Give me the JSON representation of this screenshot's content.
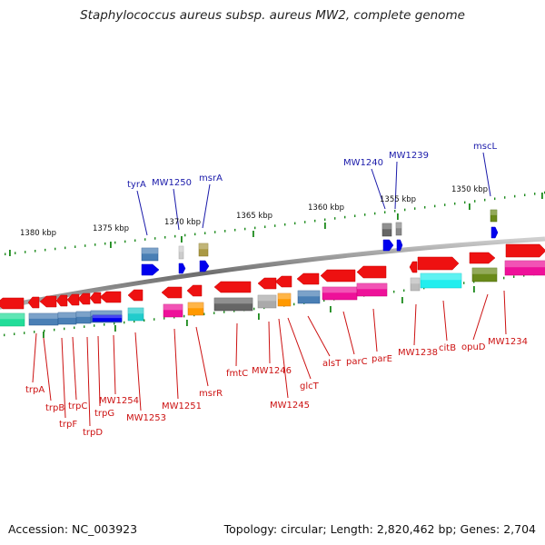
{
  "title": "Staphylococcus aureus subsp. aureus MW2, complete genome",
  "accession": "Accession: NC_003923",
  "summary": "Topology: circular; Length: 2,820,462 bp; Genes: 2,704",
  "colors": {
    "arrow_red": "#ee1111",
    "label_red": "#cc1111",
    "label_blue": "#1a1aaa",
    "tick_green": "#1c8a1c",
    "backbone": "#888888"
  },
  "ticks": [
    {
      "label": "1380 kbp"
    },
    {
      "label": "1375 kbp"
    },
    {
      "label": "1370 kbp"
    },
    {
      "label": "1365 kbp"
    },
    {
      "label": "1360 kbp"
    },
    {
      "label": "1355 kbp"
    },
    {
      "label": "1350 kbp"
    }
  ],
  "blue_labels": [
    "tyrA",
    "MW1250",
    "msrA",
    "MW1240",
    "MW1239",
    "mscL"
  ],
  "red_labels": [
    "trpA",
    "trpB",
    "trpF",
    "trpC",
    "trpD",
    "trpG",
    "MW1254",
    "MW1253",
    "MW1251",
    "msrR",
    "fmtC",
    "MW1246",
    "MW1245",
    "glcT",
    "alsT",
    "parC",
    "parE",
    "MW1238",
    "citB",
    "opuD",
    "MW1234"
  ]
}
